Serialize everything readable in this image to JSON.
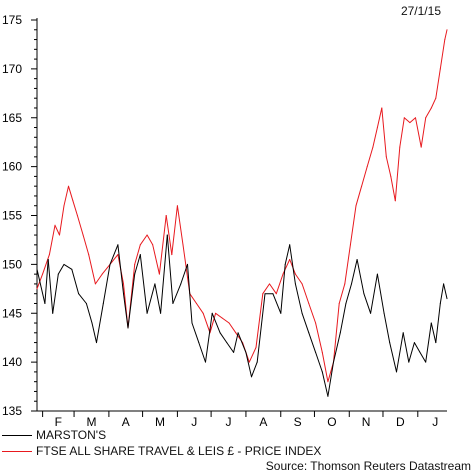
{
  "chart_data": {
    "type": "line",
    "date_label": "27/1/15",
    "ylim": [
      135,
      175
    ],
    "y_ticks": [
      135,
      140,
      145,
      150,
      155,
      160,
      165,
      170,
      175
    ],
    "x_tick_labels": [
      "F",
      "M",
      "A",
      "M",
      "J",
      "J",
      "A",
      "S",
      "O",
      "N",
      "D",
      "J"
    ],
    "x_range": [
      "2014-01-27",
      "2015-01-27"
    ],
    "grid": false,
    "legend_position": "bottom",
    "source": "Source: Thomson Reuters Datastream",
    "series": [
      {
        "name": "MARSTON'S",
        "color": "#000000",
        "points": [
          [
            "2014-01-27",
            149.5
          ],
          [
            "2014-02-03",
            146
          ],
          [
            "2014-02-06",
            150.5
          ],
          [
            "2014-02-10",
            145
          ],
          [
            "2014-02-15",
            149
          ],
          [
            "2014-02-20",
            150
          ],
          [
            "2014-02-27",
            149.5
          ],
          [
            "2014-03-05",
            147
          ],
          [
            "2014-03-12",
            146
          ],
          [
            "2014-03-17",
            144
          ],
          [
            "2014-03-21",
            142
          ],
          [
            "2014-03-27",
            146
          ],
          [
            "2014-04-02",
            150
          ],
          [
            "2014-04-09",
            152
          ],
          [
            "2014-04-14",
            147
          ],
          [
            "2014-04-18",
            143.5
          ],
          [
            "2014-04-24",
            149
          ],
          [
            "2014-04-29",
            151
          ],
          [
            "2014-05-05",
            145
          ],
          [
            "2014-05-12",
            148
          ],
          [
            "2014-05-17",
            145
          ],
          [
            "2014-05-23",
            153
          ],
          [
            "2014-05-28",
            146
          ],
          [
            "2014-06-04",
            148
          ],
          [
            "2014-06-10",
            150
          ],
          [
            "2014-06-14",
            144
          ],
          [
            "2014-06-20",
            142
          ],
          [
            "2014-06-26",
            140
          ],
          [
            "2014-07-02",
            145
          ],
          [
            "2014-07-09",
            143
          ],
          [
            "2014-07-15",
            142
          ],
          [
            "2014-07-21",
            141
          ],
          [
            "2014-07-25",
            143
          ],
          [
            "2014-08-01",
            141
          ],
          [
            "2014-08-06",
            138.5
          ],
          [
            "2014-08-11",
            140
          ],
          [
            "2014-08-18",
            147
          ],
          [
            "2014-08-25",
            147
          ],
          [
            "2014-09-01",
            145
          ],
          [
            "2014-09-05",
            150
          ],
          [
            "2014-09-09",
            152
          ],
          [
            "2014-09-14",
            148
          ],
          [
            "2014-09-20",
            145
          ],
          [
            "2014-09-26",
            143
          ],
          [
            "2014-10-02",
            141
          ],
          [
            "2014-10-08",
            139
          ],
          [
            "2014-10-13",
            136.5
          ],
          [
            "2014-10-18",
            140
          ],
          [
            "2014-10-24",
            143
          ],
          [
            "2014-10-29",
            146
          ],
          [
            "2014-11-03",
            148
          ],
          [
            "2014-11-08",
            150.5
          ],
          [
            "2014-11-14",
            147
          ],
          [
            "2014-11-20",
            145
          ],
          [
            "2014-11-26",
            149
          ],
          [
            "2014-12-02",
            145
          ],
          [
            "2014-12-07",
            142
          ],
          [
            "2014-12-13",
            139
          ],
          [
            "2014-12-19",
            143
          ],
          [
            "2014-12-24",
            140
          ],
          [
            "2014-12-29",
            142
          ],
          [
            "2015-01-03",
            141
          ],
          [
            "2015-01-08",
            140
          ],
          [
            "2015-01-13",
            144
          ],
          [
            "2015-01-17",
            142
          ],
          [
            "2015-01-21",
            146
          ],
          [
            "2015-01-24",
            148
          ],
          [
            "2015-01-27",
            146.5
          ]
        ]
      },
      {
        "name": "FTSE ALL SHARE TRAVEL & LEIS £ - PRICE INDEX",
        "color": "#e8191e",
        "points": [
          [
            "2014-01-27",
            147.5
          ],
          [
            "2014-02-01",
            149
          ],
          [
            "2014-02-07",
            151
          ],
          [
            "2014-02-12",
            154
          ],
          [
            "2014-02-16",
            153
          ],
          [
            "2014-02-20",
            156
          ],
          [
            "2014-02-24",
            158
          ],
          [
            "2014-02-28",
            156.5
          ],
          [
            "2014-03-04",
            155
          ],
          [
            "2014-03-09",
            153
          ],
          [
            "2014-03-14",
            151
          ],
          [
            "2014-03-20",
            148
          ],
          [
            "2014-03-26",
            149
          ],
          [
            "2014-04-02",
            150
          ],
          [
            "2014-04-09",
            151
          ],
          [
            "2014-04-14",
            148
          ],
          [
            "2014-04-18",
            143.5
          ],
          [
            "2014-04-24",
            150
          ],
          [
            "2014-04-29",
            152
          ],
          [
            "2014-05-05",
            153
          ],
          [
            "2014-05-10",
            152
          ],
          [
            "2014-05-16",
            149
          ],
          [
            "2014-05-22",
            155
          ],
          [
            "2014-05-27",
            151
          ],
          [
            "2014-06-01",
            156
          ],
          [
            "2014-06-06",
            152
          ],
          [
            "2014-06-12",
            147
          ],
          [
            "2014-06-18",
            146
          ],
          [
            "2014-06-24",
            145
          ],
          [
            "2014-06-30",
            143
          ],
          [
            "2014-07-05",
            145
          ],
          [
            "2014-07-11",
            144.5
          ],
          [
            "2014-07-17",
            144
          ],
          [
            "2014-07-23",
            143
          ],
          [
            "2014-07-29",
            142
          ],
          [
            "2014-08-04",
            140
          ],
          [
            "2014-08-10",
            141.5
          ],
          [
            "2014-08-16",
            147
          ],
          [
            "2014-08-22",
            148
          ],
          [
            "2014-08-28",
            147
          ],
          [
            "2014-09-03",
            149
          ],
          [
            "2014-09-09",
            150.5
          ],
          [
            "2014-09-14",
            149
          ],
          [
            "2014-09-20",
            148
          ],
          [
            "2014-09-26",
            146
          ],
          [
            "2014-10-02",
            144
          ],
          [
            "2014-10-08",
            141
          ],
          [
            "2014-10-13",
            138
          ],
          [
            "2014-10-18",
            140
          ],
          [
            "2014-10-23",
            146
          ],
          [
            "2014-10-28",
            148
          ],
          [
            "2014-11-02",
            152
          ],
          [
            "2014-11-07",
            156
          ],
          [
            "2014-11-12",
            158
          ],
          [
            "2014-11-17",
            160
          ],
          [
            "2014-11-22",
            162
          ],
          [
            "2014-11-26",
            164
          ],
          [
            "2014-11-30",
            166
          ],
          [
            "2014-12-04",
            161
          ],
          [
            "2014-12-08",
            159
          ],
          [
            "2014-12-12",
            156.5
          ],
          [
            "2014-12-16",
            162
          ],
          [
            "2014-12-20",
            165
          ],
          [
            "2014-12-25",
            164.5
          ],
          [
            "2014-12-30",
            165
          ],
          [
            "2015-01-04",
            162
          ],
          [
            "2015-01-08",
            165
          ],
          [
            "2015-01-13",
            166
          ],
          [
            "2015-01-17",
            167
          ],
          [
            "2015-01-21",
            170
          ],
          [
            "2015-01-25",
            173
          ],
          [
            "2015-01-27",
            174
          ]
        ]
      }
    ]
  }
}
